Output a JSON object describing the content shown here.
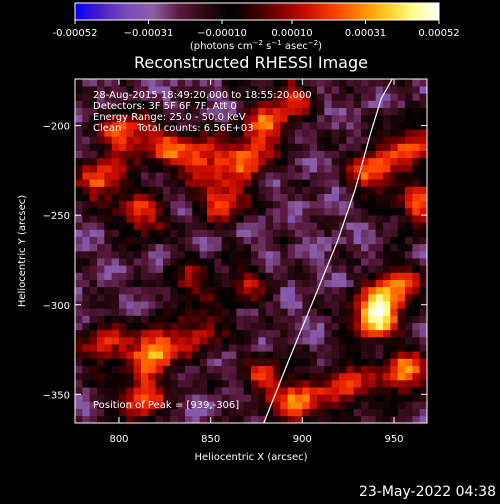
{
  "chart_data": {
    "type": "heatmap",
    "title": "Reconstructed RHESSI Image",
    "xlabel": "Heliocentric X (arcsec)",
    "ylabel": "Heliocentric Y (arcsec)",
    "xlim": [
      776,
      968
    ],
    "ylim": [
      -366,
      -174
    ],
    "x_ticks": [
      800,
      850,
      900,
      950
    ],
    "y_ticks": [
      -200,
      -250,
      -300,
      -350
    ],
    "x_tick_labels": [
      "800",
      "850",
      "900",
      "950"
    ],
    "y_tick_labels": [
      "−200",
      "−250",
      "−300",
      "−350"
    ],
    "colorbar": {
      "range": [
        -0.00052,
        0.00052
      ],
      "tick_values": [
        -0.00052,
        -0.00031,
        -0.0001,
        0.0001,
        0.00031,
        0.00052
      ],
      "tick_labels": [
        "-0.00052",
        "−0.00031",
        "−0.00010",
        "0.00010",
        "0.00031",
        "0.00052"
      ],
      "units_main": "(photons cm",
      "units_exp1": "−2",
      "units_mid1": " s",
      "units_exp2": "−1",
      "units_mid2": " asec",
      "units_exp3": "−2",
      "units_end": ")",
      "colormap_stops": [
        "#0000ff",
        "#4a1fc4",
        "#7a4fb8",
        "#8b5ea8",
        "#5a1a40",
        "#2a0810",
        "#000000",
        "#3a0000",
        "#8a0000",
        "#d01000",
        "#ff4000",
        "#ff8800",
        "#ffcc20",
        "#ffff90",
        "#ffffff"
      ]
    },
    "blobs": [
      {
        "x": 790,
        "y": -230,
        "amp": 0.00028
      },
      {
        "x": 803,
        "y": -204,
        "amp": 0.0003
      },
      {
        "x": 825,
        "y": -212,
        "amp": 0.00018
      },
      {
        "x": 845,
        "y": -218,
        "amp": 0.00026
      },
      {
        "x": 870,
        "y": -218,
        "amp": 0.00024
      },
      {
        "x": 857,
        "y": -241,
        "amp": 0.00028
      },
      {
        "x": 812,
        "y": -250,
        "amp": 0.00022
      },
      {
        "x": 880,
        "y": -200,
        "amp": 0.0002
      },
      {
        "x": 893,
        "y": -185,
        "amp": 0.00016
      },
      {
        "x": 938,
        "y": -225,
        "amp": 0.00032
      },
      {
        "x": 960,
        "y": -211,
        "amp": 0.00026
      },
      {
        "x": 963,
        "y": -245,
        "amp": 0.00024
      },
      {
        "x": 820,
        "y": -325,
        "amp": 0.00042
      },
      {
        "x": 792,
        "y": -323,
        "amp": 0.00022
      },
      {
        "x": 812,
        "y": -352,
        "amp": 0.0003
      },
      {
        "x": 845,
        "y": -315,
        "amp": 0.00016
      },
      {
        "x": 939,
        "y": -306,
        "amp": 0.00052
      },
      {
        "x": 952,
        "y": -290,
        "amp": 0.0003
      },
      {
        "x": 955,
        "y": -338,
        "amp": 0.00034
      },
      {
        "x": 925,
        "y": -345,
        "amp": 0.00024
      },
      {
        "x": 898,
        "y": -355,
        "amp": 0.00032
      },
      {
        "x": 880,
        "y": -340,
        "amp": 0.00018
      },
      {
        "x": 838,
        "y": -287,
        "amp": 0.0001
      },
      {
        "x": 868,
        "y": -290,
        "amp": 0.0001
      }
    ],
    "limb_curve": {
      "x": [
        879,
        893,
        907,
        919,
        929,
        937,
        943,
        949
      ],
      "y": [
        -366,
        -330,
        -295,
        -265,
        -235,
        -205,
        -185,
        -174
      ]
    },
    "peak": {
      "x": 939,
      "y": -306
    }
  },
  "annotations": {
    "time_range": "28-Aug-2015 18:49:20.000 to 18:55:20.000",
    "detectors": "Detectors: 3F 5F 6F 7F, Att 0",
    "energy": "Energy Range: 25.0 - 50.0 keV",
    "clean": "Clean     Total counts: 6.56E+03",
    "peak": "Position of Peak = [939,-306]"
  },
  "footer": {
    "timestamp": "23-May-2022 04:38"
  }
}
